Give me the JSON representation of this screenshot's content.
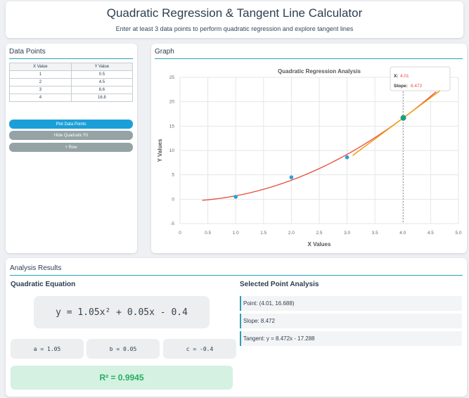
{
  "header": {
    "title": "Quadratic Regression & Tangent Line Calculator",
    "subtitle": "Enter at least 3 data points to perform quadratic regression and explore tangent lines"
  },
  "data_panel": {
    "title": "Data Points",
    "col_x": "X Value",
    "col_y": "Y Value",
    "rows": [
      {
        "x": "1",
        "y": "0.5"
      },
      {
        "x": "2",
        "y": "4.5"
      },
      {
        "x": "3",
        "y": "8.6"
      },
      {
        "x": "4",
        "y": "16.8"
      }
    ],
    "btn_plot": "Plot Data Points",
    "btn_hide": "Hide Quadratic Fit",
    "btn_row": "+ Row"
  },
  "graph_panel": {
    "title": "Graph"
  },
  "colors": {
    "accent": "#2aa0b8",
    "point": "#2e9fd6",
    "curve": "#e74c3c",
    "tangent": "#f39c12",
    "selected": "#16a085",
    "btn_primary": "#1b9fd8",
    "btn_secondary": "#95a3a4",
    "r2_bg": "#d4f1e2",
    "r2_text": "#27ae60"
  },
  "chart_data": {
    "type": "scatter",
    "title": "Quadratic Regression Analysis",
    "xlabel": "X Values",
    "ylabel": "Y Values",
    "xlim": [
      0,
      5
    ],
    "ylim": [
      -5,
      25
    ],
    "x_ticks": [
      "0",
      "0.5",
      "1.0",
      "1.5",
      "2.0",
      "2.5",
      "3.0",
      "3.5",
      "4.0",
      "4.5",
      "5.0"
    ],
    "y_ticks": [
      "-5",
      "0",
      "5",
      "10",
      "15",
      "20",
      "25"
    ],
    "points": [
      {
        "x": 1,
        "y": 0.5
      },
      {
        "x": 2,
        "y": 4.5
      },
      {
        "x": 3,
        "y": 8.6
      },
      {
        "x": 4,
        "y": 16.8
      }
    ],
    "fit": {
      "a": 1.05,
      "b": 0.05,
      "c": -0.4,
      "x_from": 0.4,
      "x_to": 4.6
    },
    "selected": {
      "x": 4.01,
      "y": 16.688,
      "slope": 8.472,
      "intercept": -17.288
    },
    "tangent_x_range": [
      3.1,
      4.7
    ],
    "tooltip": {
      "x_label": "X:",
      "x_value": "4.01",
      "slope_label": "Slope:",
      "slope_value": "8.472"
    },
    "grid": true
  },
  "analysis": {
    "title": "Analysis Results",
    "equation_title": "Quadratic Equation",
    "equation": "y = 1.05x² + 0.05x - 0.4",
    "coef_a": "a = 1.05",
    "coef_b": "b = 0.05",
    "coef_c": "c = -0.4",
    "r2": "R² = 0.9945",
    "point_title": "Selected Point Analysis",
    "point": "Point: (4.01, 16.688)",
    "slope": "Slope: 8.472",
    "tangent": "Tangent: y = 8.472x - 17.288"
  }
}
